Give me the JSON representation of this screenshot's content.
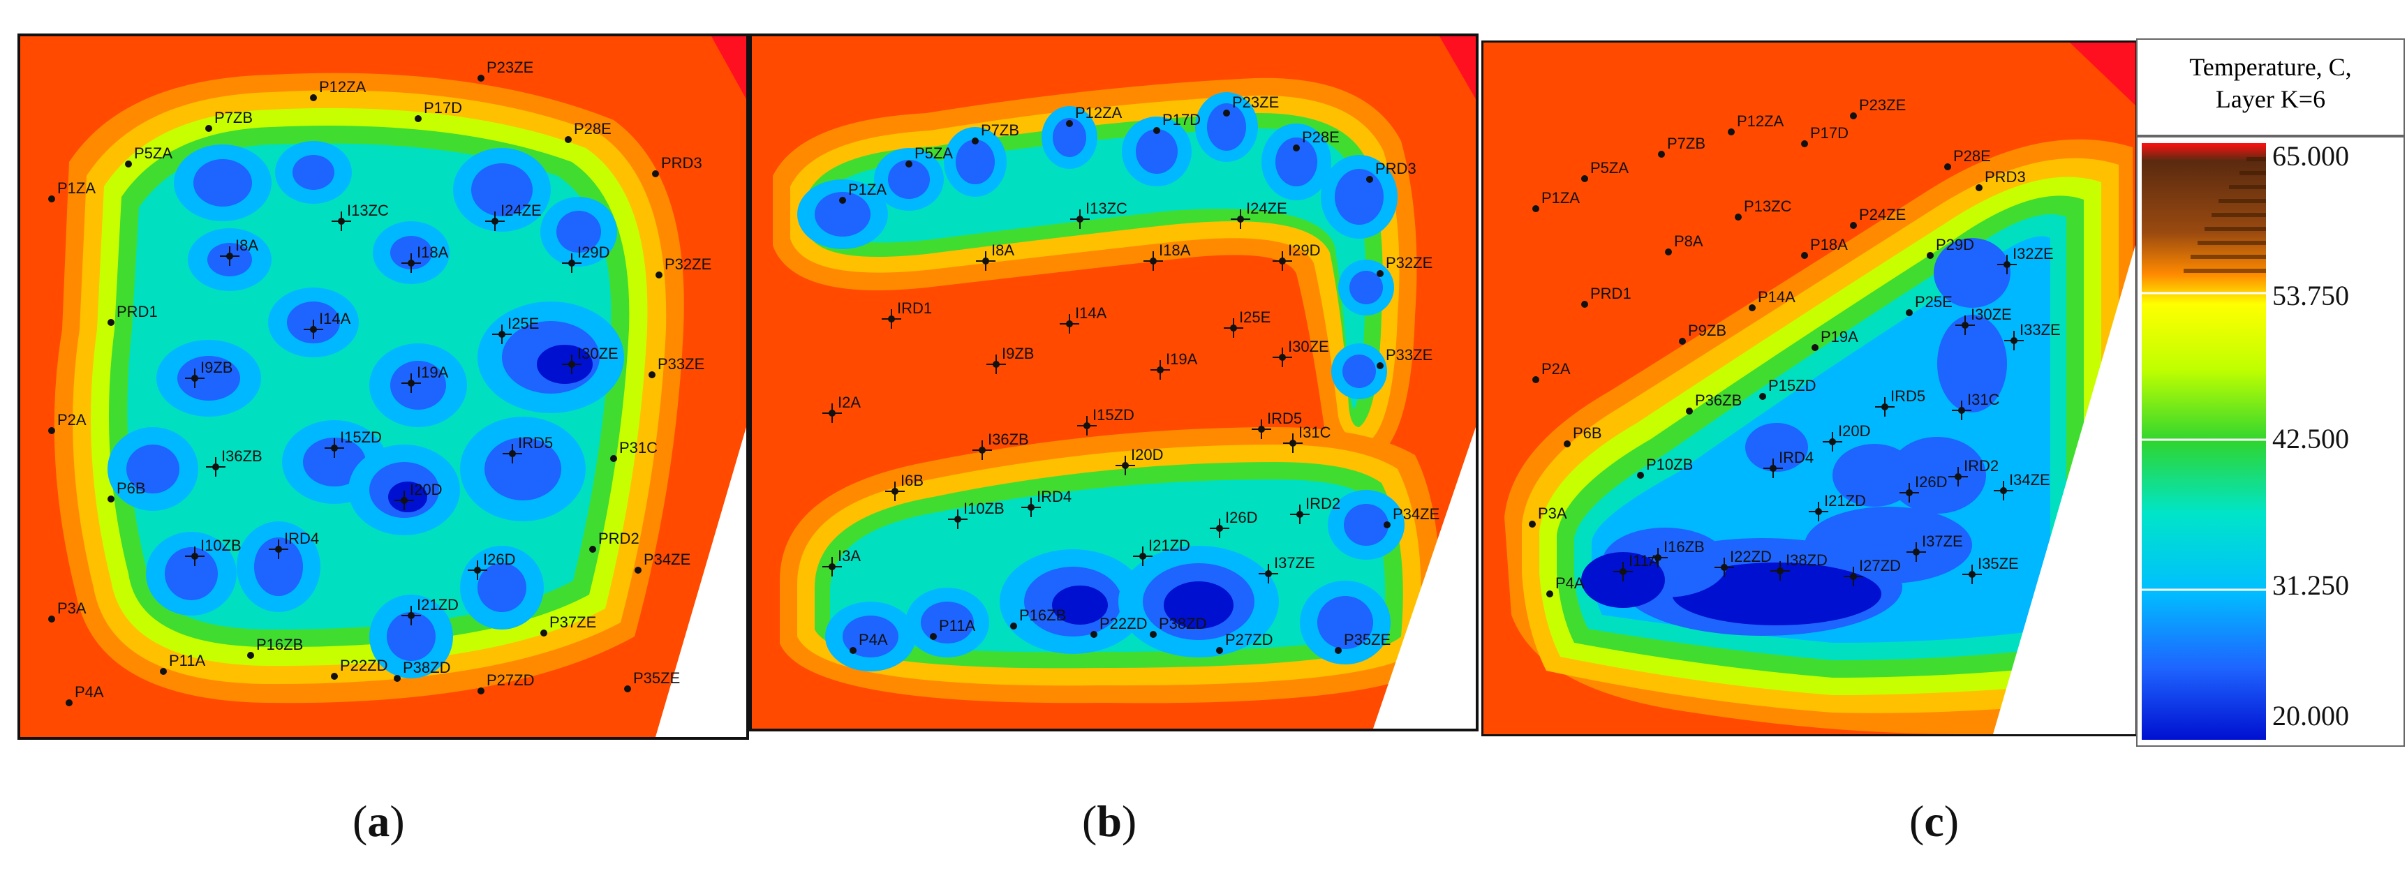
{
  "captions": {
    "a": "a",
    "b": "b",
    "c": "c"
  },
  "legend": {
    "title_line1": "Temperature, C,",
    "title_line2": "Layer K=6",
    "values": [
      "65.000",
      "53.750",
      "42.500",
      "31.250",
      "20.000"
    ],
    "colors": [
      "#8b2500",
      "#ff6a00",
      "#ffb000",
      "#ffff00",
      "#bfff00",
      "#2fd52f",
      "#00e5c8",
      "#00bfff",
      "#1e64ff",
      "#0010d0"
    ]
  },
  "panels": {
    "a": {
      "wells": [
        "P23ZE",
        "P12ZA",
        "P17D",
        "P7ZB",
        "P28E",
        "P5ZA",
        "PRD3",
        "P1ZA",
        "I13ZC",
        "I24ZE",
        "I8A",
        "I18A",
        "I29D",
        "P32ZE",
        "PRD1",
        "I14A",
        "I25E",
        "I30ZE",
        "P33ZE",
        "I9ZB",
        "I19A",
        "P2A",
        "I15ZD",
        "IRD5",
        "P31C",
        "I36ZB",
        "I20D",
        "P6B",
        "IRD4",
        "I10ZB",
        "PRD2",
        "I26D",
        "P34ZE",
        "I21ZD",
        "P3A",
        "P37ZE",
        "P16ZB",
        "P22ZD",
        "P11A",
        "P38ZD",
        "P27ZD",
        "P35ZE",
        "P4A"
      ]
    },
    "b": {
      "wells": [
        "P23ZE",
        "P12ZA",
        "P17D",
        "P7ZB",
        "P28E",
        "P5ZA",
        "PRD3",
        "P1ZA",
        "I13ZC",
        "I24ZE",
        "I8A",
        "I18A",
        "I29D",
        "P32ZE",
        "IRD1",
        "I14A",
        "I25E",
        "I30ZE",
        "P33ZE",
        "I9ZB",
        "I19A",
        "I2A",
        "I15ZD",
        "IRD5",
        "I31C",
        "I36ZB",
        "I20D",
        "I6B",
        "IRD4",
        "I10ZB",
        "IRD2",
        "I26D",
        "P34ZE",
        "I21ZD",
        "I3A",
        "I37ZE",
        "P16ZB",
        "P22ZD",
        "P11A",
        "P38ZD",
        "P27ZD",
        "P35ZE",
        "P4A"
      ]
    },
    "c": {
      "wells": [
        "P23ZE",
        "P12ZA",
        "P17D",
        "P7ZB",
        "P28E",
        "P5ZA",
        "PRD3",
        "P1ZA",
        "P13ZC",
        "P24ZE",
        "P8A",
        "P18A",
        "P29D",
        "I32ZE",
        "PRD1",
        "P14A",
        "P25E",
        "I30ZE",
        "I33ZE",
        "P9ZB",
        "P19A",
        "P2A",
        "P15ZD",
        "IRD5",
        "I31C",
        "P36ZB",
        "I20D",
        "P6B",
        "IRD4",
        "P10ZB",
        "IRD2",
        "I26D",
        "I34ZE",
        "I21ZD",
        "P3A",
        "I37ZE",
        "I16ZB",
        "I22ZD",
        "I11A",
        "I38ZD",
        "I27ZD",
        "I35ZE",
        "P4A"
      ]
    }
  }
}
